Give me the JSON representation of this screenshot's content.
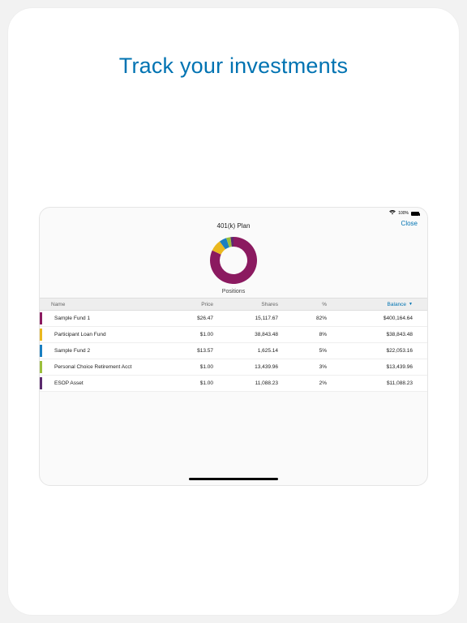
{
  "promo": {
    "title": "Track your investments"
  },
  "statusbar": {
    "battery_pct": "100%"
  },
  "header": {
    "title": "401(k) Plan",
    "close": "Close"
  },
  "section": {
    "title": "Positions"
  },
  "columns": {
    "name": "Name",
    "price": "Price",
    "shares": "Shares",
    "pct": "%",
    "balance": "Balance"
  },
  "donut": {
    "size": 58,
    "thickness": 12,
    "bg": "#fafafa",
    "slices": [
      {
        "color": "#8b1a60",
        "pct": 82
      },
      {
        "color": "#eab81f",
        "pct": 8
      },
      {
        "color": "#1a7fc1",
        "pct": 5
      },
      {
        "color": "#9bbf3b",
        "pct": 3
      },
      {
        "color": "#5b2a6e",
        "pct": 2
      }
    ]
  },
  "rows": [
    {
      "color": "#8b1a60",
      "name": "Sample Fund 1",
      "price": "$26.47",
      "shares": "15,117.67",
      "pct": "82%",
      "balance": "$400,164.64"
    },
    {
      "color": "#eab81f",
      "name": "Participant Loan Fund",
      "price": "$1.00",
      "shares": "38,843.48",
      "pct": "8%",
      "balance": "$38,843.48"
    },
    {
      "color": "#1a7fc1",
      "name": "Sample Fund 2",
      "price": "$13.57",
      "shares": "1,625.14",
      "pct": "5%",
      "balance": "$22,053.16"
    },
    {
      "color": "#9bbf3b",
      "name": "Personal Choice Retirement Acct",
      "price": "$1.00",
      "shares": "13,439.96",
      "pct": "3%",
      "balance": "$13,439.96"
    },
    {
      "color": "#5b2a6e",
      "name": "ESOP Asset",
      "price": "$1.00",
      "shares": "11,088.23",
      "pct": "2%",
      "balance": "$11,088.23"
    }
  ]
}
